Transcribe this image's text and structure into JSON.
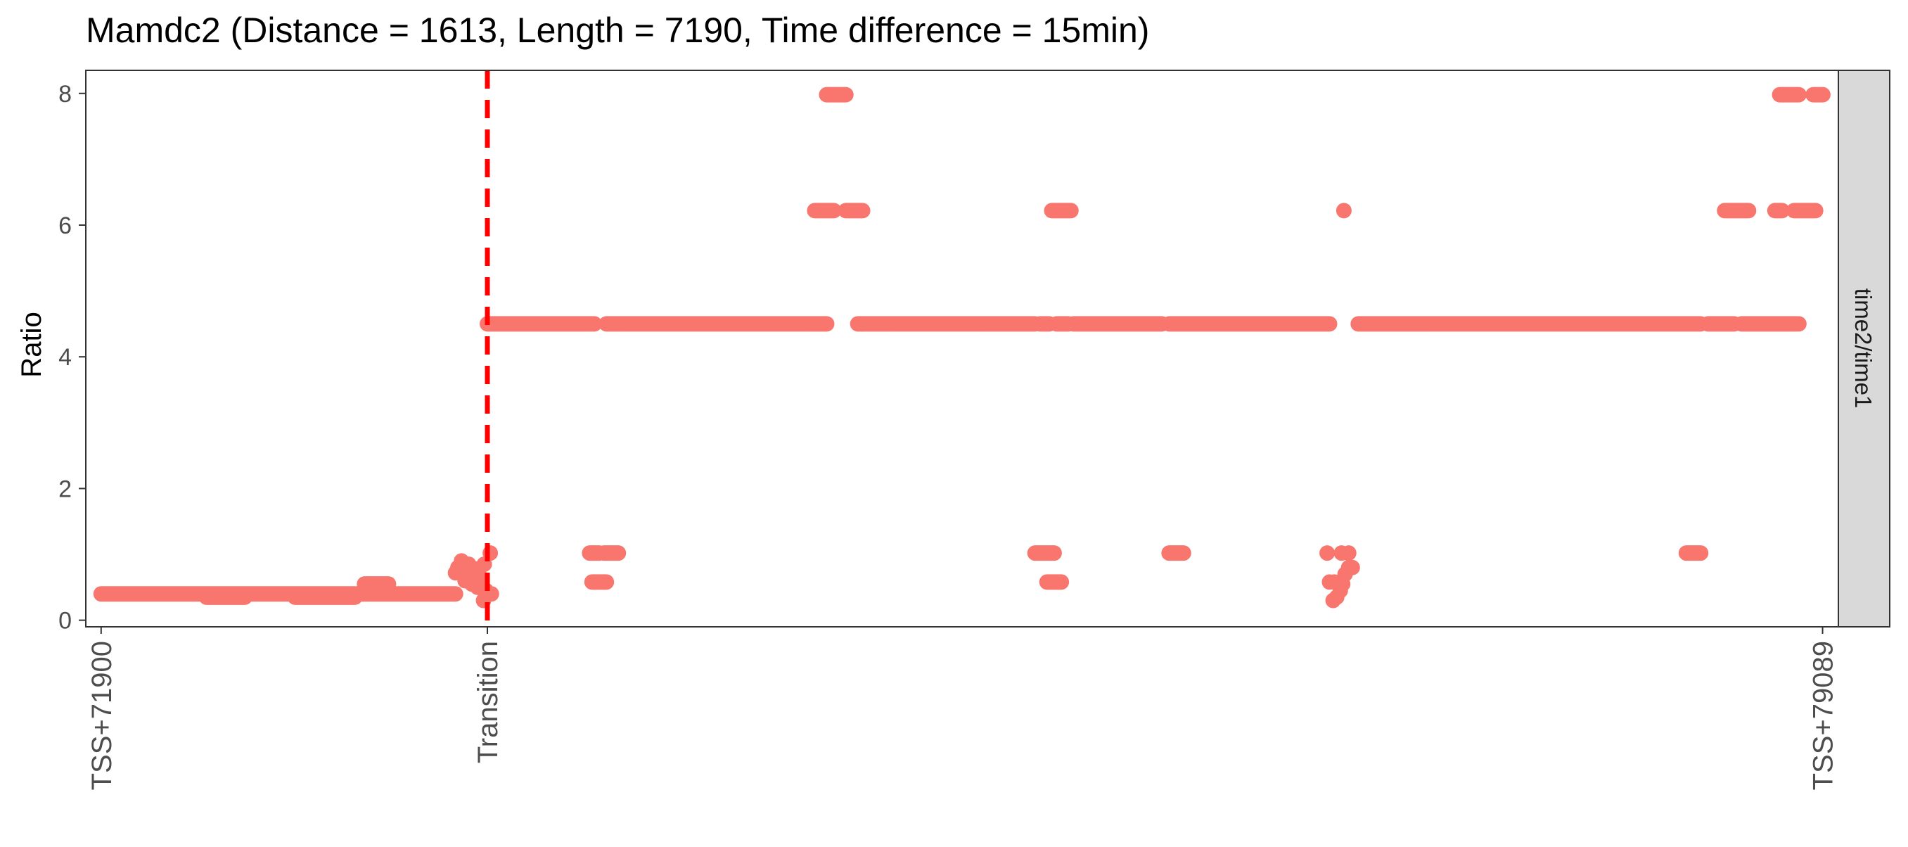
{
  "chart_data": {
    "type": "scatter",
    "title": "Mamdc2 (Distance = 1613, Length = 7190, Time difference = 15min)",
    "xlabel": "",
    "ylabel": "Ratio",
    "facet_label": "time2/time1",
    "xlim": [
      71836,
      79155
    ],
    "ylim": [
      -0.1,
      8.35
    ],
    "y_ticks": [
      0,
      2,
      4,
      6,
      8
    ],
    "x_ticks": [
      {
        "value": 71900,
        "label": "TSS+71900"
      },
      {
        "value": 73513,
        "label": "Transition"
      },
      {
        "value": 79089,
        "label": "TSS+79089"
      }
    ],
    "transition_line": {
      "x": 73513,
      "color": "#ff0000",
      "style": "dashed"
    },
    "point_color": "#f8766d",
    "grid": false,
    "series": [
      {
        "segments": [
          {
            "x0": 71900,
            "x1": 73380,
            "y": 0.4
          },
          {
            "x0": 72340,
            "x1": 72500,
            "y": 0.35
          },
          {
            "x0": 72710,
            "x1": 72960,
            "y": 0.35
          },
          {
            "x0": 73000,
            "x1": 73100,
            "y": 0.55
          },
          {
            "x0": 73513,
            "x1": 73960,
            "y": 4.5
          },
          {
            "x0": 74010,
            "x1": 74930,
            "y": 4.5
          },
          {
            "x0": 75060,
            "x1": 75800,
            "y": 4.5
          },
          {
            "x0": 75820,
            "x1": 75860,
            "y": 4.5
          },
          {
            "x0": 75890,
            "x1": 75940,
            "y": 4.5
          },
          {
            "x0": 75960,
            "x1": 76330,
            "y": 4.5
          },
          {
            "x0": 76360,
            "x1": 77030,
            "y": 4.5
          },
          {
            "x0": 77150,
            "x1": 78580,
            "y": 4.5
          },
          {
            "x0": 78610,
            "x1": 78720,
            "y": 4.5
          },
          {
            "x0": 78750,
            "x1": 78980,
            "y": 4.5
          },
          {
            "x0": 74880,
            "x1": 74960,
            "y": 6.22
          },
          {
            "x0": 75010,
            "x1": 75080,
            "y": 6.22
          },
          {
            "x0": 75870,
            "x1": 75950,
            "y": 6.22
          },
          {
            "x0": 78680,
            "x1": 78780,
            "y": 6.22
          },
          {
            "x0": 78890,
            "x1": 78920,
            "y": 6.22
          },
          {
            "x0": 78970,
            "x1": 79060,
            "y": 6.22
          },
          {
            "x0": 74930,
            "x1": 75010,
            "y": 7.98
          },
          {
            "x0": 78910,
            "x1": 78990,
            "y": 7.98
          },
          {
            "x0": 79050,
            "x1": 79090,
            "y": 7.98
          },
          {
            "x0": 73940,
            "x1": 73980,
            "y": 1.02
          },
          {
            "x0": 74000,
            "x1": 74060,
            "y": 1.02
          },
          {
            "x0": 75800,
            "x1": 75880,
            "y": 1.02
          },
          {
            "x0": 76360,
            "x1": 76420,
            "y": 1.02
          },
          {
            "x0": 78520,
            "x1": 78580,
            "y": 1.02
          },
          {
            "x0": 73950,
            "x1": 74010,
            "y": 0.58
          },
          {
            "x0": 75850,
            "x1": 75910,
            "y": 0.58
          }
        ],
        "points": [
          {
            "x": 73380,
            "y": 0.72
          },
          {
            "x": 73390,
            "y": 0.8
          },
          {
            "x": 73405,
            "y": 0.9
          },
          {
            "x": 73420,
            "y": 0.6
          },
          {
            "x": 73435,
            "y": 0.85
          },
          {
            "x": 73448,
            "y": 0.55
          },
          {
            "x": 73460,
            "y": 0.78
          },
          {
            "x": 73472,
            "y": 0.5
          },
          {
            "x": 73485,
            "y": 0.65
          },
          {
            "x": 73497,
            "y": 0.3
          },
          {
            "x": 73508,
            "y": 0.45
          },
          {
            "x": 73525,
            "y": 1.02
          },
          {
            "x": 73530,
            "y": 0.4
          },
          {
            "x": 73500,
            "y": 0.85
          },
          {
            "x": 73440,
            "y": 0.7
          },
          {
            "x": 75080,
            "y": 4.5
          },
          {
            "x": 78990,
            "y": 4.5
          },
          {
            "x": 77090,
            "y": 6.22
          },
          {
            "x": 77020,
            "y": 1.02
          },
          {
            "x": 77080,
            "y": 1.02
          },
          {
            "x": 77110,
            "y": 1.02
          },
          {
            "x": 77030,
            "y": 0.58
          },
          {
            "x": 77050,
            "y": 0.58
          },
          {
            "x": 77075,
            "y": 0.45
          },
          {
            "x": 77045,
            "y": 0.3
          },
          {
            "x": 77060,
            "y": 0.35
          },
          {
            "x": 77085,
            "y": 0.55
          },
          {
            "x": 77095,
            "y": 0.7
          },
          {
            "x": 77110,
            "y": 0.8
          },
          {
            "x": 77125,
            "y": 0.8
          }
        ]
      }
    ]
  }
}
